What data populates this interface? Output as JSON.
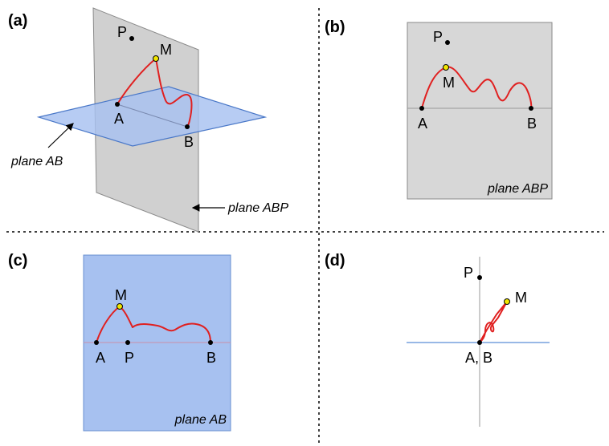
{
  "panels": {
    "a": {
      "label": "(a)",
      "points": {
        "P": "P",
        "M": "M",
        "A": "A",
        "B": "B"
      },
      "plane_ab_label": "plane AB",
      "plane_abp_label": "plane ABP"
    },
    "b": {
      "label": "(b)",
      "points": {
        "P": "P",
        "M": "M",
        "A": "A",
        "B": "B"
      },
      "plane_label": "plane ABP"
    },
    "c": {
      "label": "(c)",
      "points": {
        "M": "M",
        "A": "A",
        "P": "P",
        "B": "B"
      },
      "plane_label": "plane AB"
    },
    "d": {
      "label": "(d)",
      "points": {
        "P": "P",
        "M": "M",
        "AB": "A, B"
      }
    }
  },
  "colors": {
    "plane_ab_fill": "#a7c1f0",
    "plane_abp_fill": "#c8c8c8",
    "curve": "#e02020",
    "point_m_fill": "#f2e600",
    "axis_blue": "#5b8ed8"
  }
}
